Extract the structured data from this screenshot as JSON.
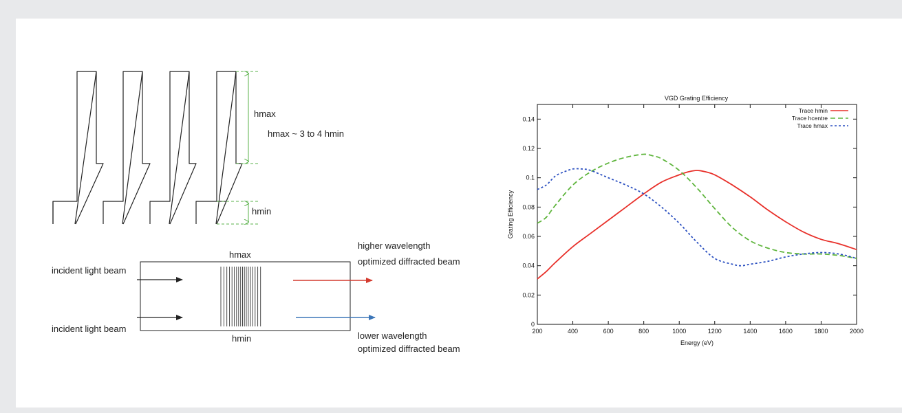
{
  "diagram": {
    "label_hmax_top": "hmax",
    "label_ratio": "hmax ~ 3 to 4 hmin",
    "label_hmin_side": "hmin",
    "label_hmax_box": "hmax",
    "label_hmin_box": "hmin",
    "incident_top": "incident light beam",
    "incident_bottom": "incident light beam",
    "higher_line1": "higher wavelength",
    "higher_line2": "optimized diffracted beam",
    "lower_line1": "lower wavelength",
    "lower_line2": "optimized diffracted beam",
    "colors": {
      "dimension": "#58b048",
      "higher_arrow": "#d43a2e",
      "lower_arrow": "#3c76b8",
      "ink": "#222222"
    }
  },
  "chart_data": {
    "type": "line",
    "title": "VGD Grating Efficiency",
    "xlabel": "Energy (eV)",
    "ylabel": "Grating Efficiency",
    "xlim": [
      200,
      2000
    ],
    "ylim": [
      0,
      0.15
    ],
    "xticks": [
      "200",
      "400",
      "600",
      "800",
      "1000",
      "1200",
      "1400",
      "1600",
      "1800",
      "2000"
    ],
    "yticks": [
      "0",
      "0.02",
      "0.04",
      "0.06",
      "0.08",
      "0.1",
      "0.12",
      "0.14"
    ],
    "legend_position": "top-right",
    "grid": false,
    "series": [
      {
        "name": "Trace hmin",
        "color": "#e8302a",
        "dash": "solid",
        "x": [
          200,
          250,
          300,
          400,
          500,
          600,
          700,
          800,
          900,
          1000,
          1050,
          1100,
          1150,
          1200,
          1300,
          1400,
          1500,
          1600,
          1700,
          1800,
          1900,
          2000
        ],
        "y": [
          0.031,
          0.036,
          0.042,
          0.053,
          0.062,
          0.071,
          0.08,
          0.089,
          0.097,
          0.102,
          0.104,
          0.105,
          0.104,
          0.102,
          0.095,
          0.087,
          0.078,
          0.07,
          0.063,
          0.058,
          0.055,
          0.051
        ]
      },
      {
        "name": "Trace hcentre",
        "color": "#5fb53d",
        "dash": "long",
        "x": [
          200,
          250,
          300,
          400,
          500,
          600,
          700,
          800,
          850,
          900,
          1000,
          1100,
          1200,
          1300,
          1400,
          1500,
          1600,
          1700,
          1800,
          1900,
          2000
        ],
        "y": [
          0.069,
          0.073,
          0.081,
          0.095,
          0.104,
          0.11,
          0.114,
          0.116,
          0.115,
          0.113,
          0.105,
          0.093,
          0.079,
          0.066,
          0.057,
          0.052,
          0.049,
          0.048,
          0.048,
          0.047,
          0.045
        ]
      },
      {
        "name": "Trace hmax",
        "color": "#2a4fc0",
        "dash": "short",
        "x": [
          200,
          250,
          300,
          350,
          400,
          450,
          500,
          600,
          700,
          800,
          900,
          1000,
          1100,
          1200,
          1300,
          1350,
          1400,
          1500,
          1600,
          1700,
          1800,
          1900,
          2000
        ],
        "y": [
          0.092,
          0.095,
          0.101,
          0.104,
          0.106,
          0.106,
          0.105,
          0.1,
          0.095,
          0.089,
          0.08,
          0.069,
          0.056,
          0.045,
          0.041,
          0.04,
          0.041,
          0.043,
          0.046,
          0.048,
          0.049,
          0.048,
          0.045
        ]
      }
    ]
  }
}
